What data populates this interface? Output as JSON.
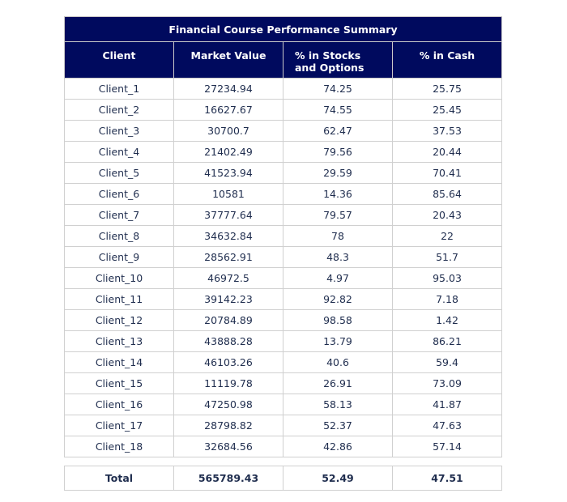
{
  "chart_data": {
    "type": "table",
    "title": "Financial Course Performance Summary",
    "columns": [
      "Client",
      "Market Value",
      "% in Stocks and Options",
      "% in Cash"
    ],
    "rows": [
      [
        "Client_1",
        "27234.94",
        "74.25",
        "25.75"
      ],
      [
        "Client_2",
        "16627.67",
        "74.55",
        "25.45"
      ],
      [
        "Client_3",
        "30700.7",
        "62.47",
        "37.53"
      ],
      [
        "Client_4",
        "21402.49",
        "79.56",
        "20.44"
      ],
      [
        "Client_5",
        "41523.94",
        "29.59",
        "70.41"
      ],
      [
        "Client_6",
        "10581",
        "14.36",
        "85.64"
      ],
      [
        "Client_7",
        "37777.64",
        "79.57",
        "20.43"
      ],
      [
        "Client_8",
        "34632.84",
        "78",
        "22"
      ],
      [
        "Client_9",
        "28562.91",
        "48.3",
        "51.7"
      ],
      [
        "Client_10",
        "46972.5",
        "4.97",
        "95.03"
      ],
      [
        "Client_11",
        "39142.23",
        "92.82",
        "7.18"
      ],
      [
        "Client_12",
        "20784.89",
        "98.58",
        "1.42"
      ],
      [
        "Client_13",
        "43888.28",
        "13.79",
        "86.21"
      ],
      [
        "Client_14",
        "46103.26",
        "40.6",
        "59.4"
      ],
      [
        "Client_15",
        "11119.78",
        "26.91",
        "73.09"
      ],
      [
        "Client_16",
        "47250.98",
        "58.13",
        "41.87"
      ],
      [
        "Client_17",
        "28798.82",
        "52.37",
        "47.63"
      ],
      [
        "Client_18",
        "32684.56",
        "42.86",
        "57.14"
      ]
    ],
    "total_row": [
      "Total",
      "565789.43",
      "52.49",
      "47.51"
    ]
  },
  "colors": {
    "header_bg": "#000a5e",
    "header_text": "#ffffff",
    "body_text": "#1f2d4e",
    "border": "#d0d0d0"
  }
}
